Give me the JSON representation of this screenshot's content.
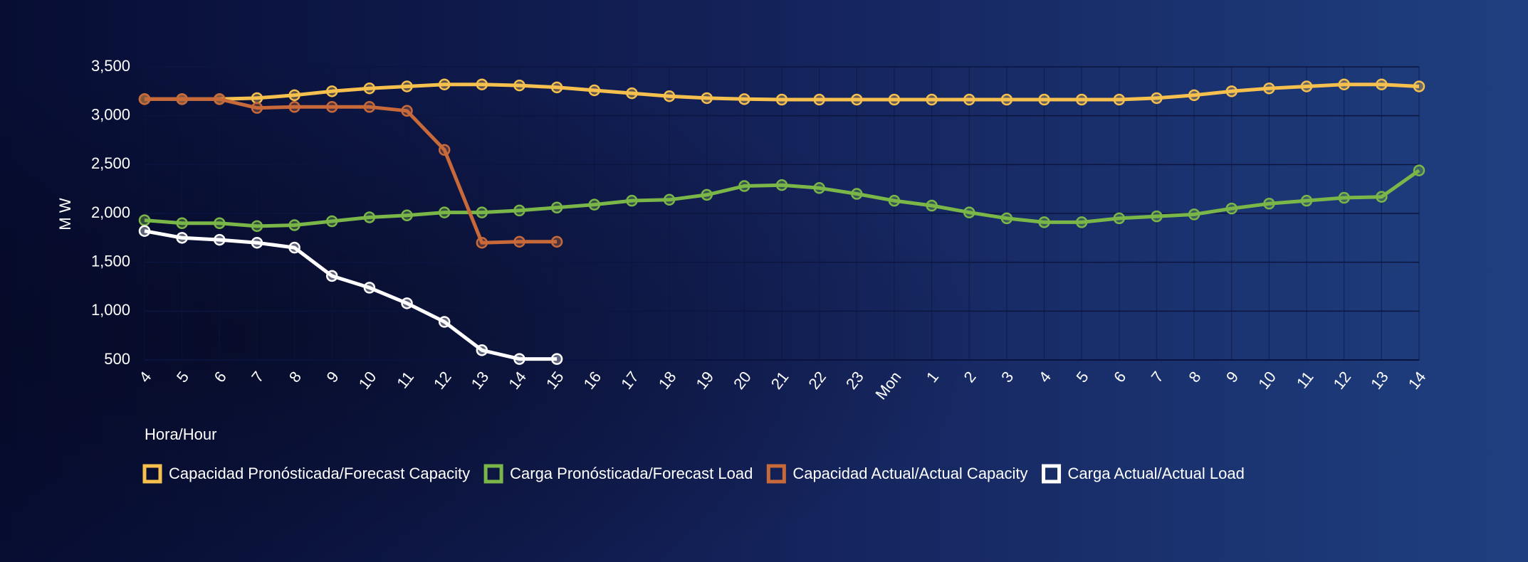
{
  "chart_data": {
    "type": "line",
    "y_label": "M W",
    "x_label": "Hora/Hour",
    "categories": [
      "4",
      "5",
      "6",
      "7",
      "8",
      "9",
      "10",
      "11",
      "12",
      "13",
      "14",
      "15",
      "16",
      "17",
      "18",
      "19",
      "20",
      "21",
      "22",
      "23",
      "Mon",
      "1",
      "2",
      "3",
      "4",
      "5",
      "6",
      "7",
      "8",
      "9",
      "10",
      "11",
      "12",
      "13",
      "14"
    ],
    "series": [
      {
        "name": "Capacidad Pronósticada/Forecast Capacity",
        "color": "#f5c04e",
        "values": [
          3170,
          3170,
          3170,
          3180,
          3210,
          3250,
          3280,
          3300,
          3320,
          3320,
          3310,
          3290,
          3260,
          3230,
          3200,
          3180,
          3170,
          3165,
          3165,
          3165,
          3165,
          3165,
          3165,
          3165,
          3165,
          3165,
          3165,
          3180,
          3210,
          3250,
          3280,
          3300,
          3320,
          3320,
          3300
        ]
      },
      {
        "name": "Carga Pronósticada/Forecast Load",
        "color": "#7ab648",
        "values": [
          1930,
          1900,
          1900,
          1870,
          1880,
          1920,
          1960,
          1980,
          2010,
          2010,
          2030,
          2060,
          2090,
          2130,
          2140,
          2190,
          2280,
          2290,
          2260,
          2200,
          2130,
          2080,
          2010,
          1950,
          1910,
          1910,
          1950,
          1970,
          1990,
          2050,
          2100,
          2130,
          2160,
          2170,
          2440
        ]
      },
      {
        "name": "Capacidad Actual/Actual Capacity",
        "color": "#c8693a",
        "values": [
          3170,
          3170,
          3170,
          3080,
          3090,
          3090,
          3090,
          3050,
          2650,
          1700,
          1710,
          1710,
          null,
          null,
          null,
          null,
          null,
          null,
          null,
          null,
          null,
          null,
          null,
          null,
          null,
          null,
          null,
          null,
          null,
          null,
          null,
          null,
          null,
          null,
          null
        ]
      },
      {
        "name": "Carga Actual/Actual Load",
        "color": "#ffffff",
        "values": [
          1820,
          1750,
          1730,
          1700,
          1650,
          1360,
          1240,
          1080,
          890,
          600,
          510,
          510,
          null,
          null,
          null,
          null,
          null,
          null,
          null,
          null,
          null,
          null,
          null,
          null,
          null,
          null,
          null,
          null,
          null,
          null,
          null,
          null,
          null,
          null,
          null
        ]
      }
    ],
    "ylim": [
      500,
      3500
    ],
    "yticks": [
      500,
      {
        "value": 1000,
        "label": "1,000"
      },
      {
        "value": 1500,
        "label": "1,500"
      },
      {
        "value": 2000,
        "label": "2,000"
      },
      {
        "value": 2500,
        "label": "2,500"
      },
      {
        "value": 3000,
        "label": "3,000"
      },
      {
        "value": 3500,
        "label": "3,500"
      }
    ],
    "grid": true
  }
}
